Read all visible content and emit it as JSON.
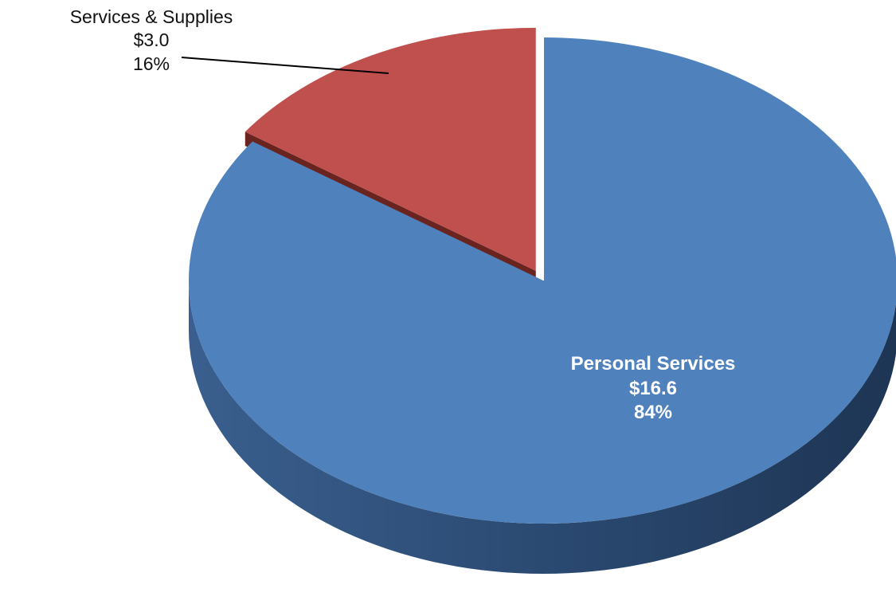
{
  "chart_data": {
    "type": "pie",
    "title": "",
    "slices": [
      {
        "name": "Personal Services",
        "value": 16.6,
        "value_label": "$16.6",
        "percent": 84,
        "percent_label": "84%",
        "color": "#4f81bd",
        "side_color": "#2a4668",
        "exploded": false
      },
      {
        "name": "Services & Supplies",
        "value": 3.0,
        "value_label": "$3.0",
        "percent": 16,
        "percent_label": "16%",
        "color": "#c0504d",
        "side_color": "#6a2420",
        "exploded": true
      }
    ],
    "start_angle_deg": 0,
    "direction": "clockwise",
    "style": "3d"
  },
  "colors": {
    "background": "#ffffff",
    "personal_services": "#4f81bd",
    "services_supplies": "#c0504d",
    "leader_line": "#000000"
  }
}
